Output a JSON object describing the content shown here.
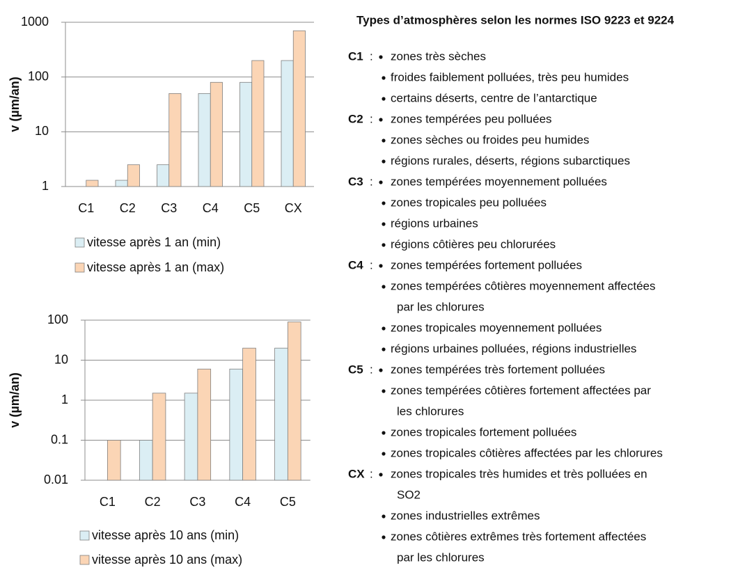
{
  "chart_data": [
    {
      "type": "bar",
      "ylabel": "v (µm/an)",
      "log_scale": true,
      "grid": true,
      "categories": [
        "C1",
        "C2",
        "C3",
        "C4",
        "C5",
        "CX"
      ],
      "series": [
        {
          "name": "vitesse après 1 an (min)",
          "color": "#dbeef4",
          "values": [
            null,
            1.3,
            2.5,
            50,
            80,
            200
          ]
        },
        {
          "name": "vitesse après 1 an (max)",
          "color": "#fbd5b5",
          "values": [
            1.3,
            2.5,
            50,
            80,
            200,
            700
          ]
        }
      ],
      "ylim": [
        1,
        1000
      ],
      "yticks": [
        1,
        10,
        100,
        1000
      ]
    },
    {
      "type": "bar",
      "ylabel": "v (µm/an)",
      "log_scale": true,
      "grid": true,
      "categories": [
        "C1",
        "C2",
        "C3",
        "C4",
        "C5"
      ],
      "series": [
        {
          "name": "vitesse après 10 ans (min)",
          "color": "#dbeef4",
          "values": [
            null,
            0.1,
            1.5,
            6,
            20
          ]
        },
        {
          "name": "vitesse après 10 ans (max)",
          "color": "#fbd5b5",
          "values": [
            0.1,
            1.5,
            6,
            20,
            90
          ]
        }
      ],
      "ylim": [
        0.01,
        100
      ],
      "yticks": [
        0.01,
        0.1,
        1,
        10,
        100
      ]
    }
  ],
  "text_panel": {
    "title": "Types d’atmosphères selon les normes ISO 9223 et 9224",
    "separator": ":",
    "code_color": "#0070c0",
    "groups": [
      {
        "code": "C1",
        "items": [
          [
            "zones très sèches"
          ],
          [
            "froides faiblement polluées, très peu humides"
          ],
          [
            "certains déserts, centre de l’antarctique"
          ]
        ]
      },
      {
        "code": "C2",
        "items": [
          [
            "zones tempérées peu polluées"
          ],
          [
            "zones sèches ou froides peu humides"
          ],
          [
            "régions rurales, déserts, régions subarctiques"
          ]
        ]
      },
      {
        "code": "C3",
        "items": [
          [
            "zones tempérées moyennement polluées"
          ],
          [
            "zones tropicales peu polluées"
          ],
          [
            "régions urbaines"
          ],
          [
            "régions côtières peu chlorurées"
          ]
        ]
      },
      {
        "code": "C4",
        "items": [
          [
            "zones tempérées fortement polluées"
          ],
          [
            "zones tempérées côtières moyennement affectées",
            "par les chlorures"
          ],
          [
            "zones tropicales moyennement polluées"
          ],
          [
            "régions urbaines polluées, régions industrielles"
          ]
        ]
      },
      {
        "code": "C5",
        "items": [
          [
            "zones tempérées très fortement polluées"
          ],
          [
            "zones tempérées côtières fortement affectées par",
            "les chlorures"
          ],
          [
            "zones tropicales fortement polluées"
          ],
          [
            "zones tropicales côtières affectées par les chlorures"
          ]
        ]
      },
      {
        "code": "CX",
        "items": [
          [
            "zones tropicales très humides et très polluées en",
            "SO2"
          ],
          [
            "zones industrielles extrêmes"
          ],
          [
            "zones côtières extrêmes très fortement affectées",
            "par les chlorures"
          ]
        ]
      }
    ]
  }
}
